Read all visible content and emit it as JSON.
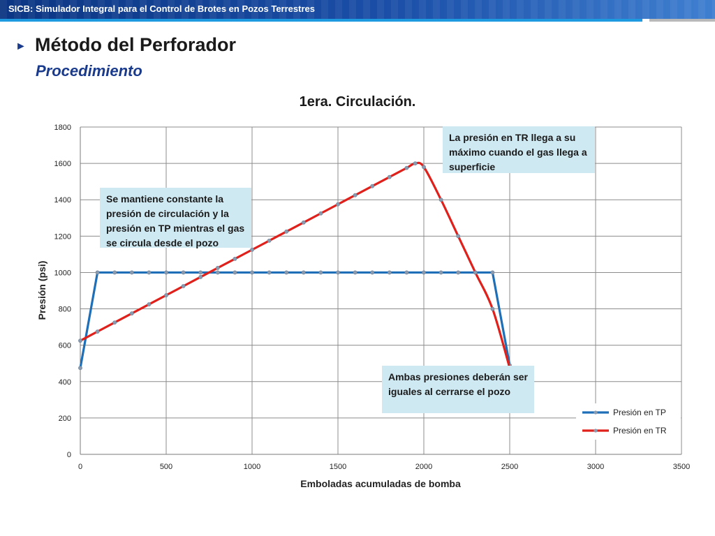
{
  "header": {
    "title": "SICB: Simulador Integral para el Control de Brotes en Pozos Terrestres"
  },
  "slide": {
    "bullet_glyph": "►",
    "title": "Método del Perforador",
    "subtitle": "Procedimiento"
  },
  "annotations": [
    "La presión en TR llega a su máximo cuando el gas llega a superficie",
    "Se mantiene constante la presión de circulación y la presión en TP mientras el gas se circula desde el pozo",
    "Ambas presiones deberán ser iguales al cerrarse el pozo"
  ],
  "chart_data": {
    "type": "line",
    "title": "1era. Circulación.",
    "xlabel": "Emboladas acumuladas de bomba",
    "ylabel": "Presión (psi)",
    "xlim": [
      0,
      3500
    ],
    "ylim": [
      0,
      1800
    ],
    "xticks": [
      0,
      500,
      1000,
      1500,
      2000,
      2500,
      3000,
      3500
    ],
    "yticks": [
      0,
      200,
      400,
      600,
      800,
      1000,
      1200,
      1400,
      1600,
      1800
    ],
    "grid": true,
    "legend_position": "bottom-right",
    "series": [
      {
        "name": "Presión en TP",
        "color": "#1f6fb8",
        "smooth": false,
        "x": [
          0,
          100,
          200,
          300,
          400,
          500,
          600,
          700,
          800,
          900,
          1000,
          1100,
          1200,
          1300,
          1400,
          1500,
          1600,
          1700,
          1800,
          1900,
          2000,
          2100,
          2200,
          2300,
          2400,
          2500
        ],
        "y": [
          475,
          1000,
          1000,
          1000,
          1000,
          1000,
          1000,
          1000,
          1000,
          1000,
          1000,
          1000,
          1000,
          1000,
          1000,
          1000,
          1000,
          1000,
          1000,
          1000,
          1000,
          1000,
          1000,
          1000,
          1000,
          490
        ]
      },
      {
        "name": "Presión en TR",
        "color": "#e0201b",
        "smooth": true,
        "x": [
          0,
          100,
          200,
          300,
          400,
          500,
          600,
          700,
          800,
          900,
          1000,
          1100,
          1200,
          1300,
          1400,
          1500,
          1600,
          1700,
          1800,
          1900,
          1950,
          2000,
          2100,
          2200,
          2300,
          2400,
          2500
        ],
        "y": [
          625,
          675,
          725,
          775,
          825,
          875,
          925,
          975,
          1025,
          1075,
          1125,
          1175,
          1225,
          1275,
          1325,
          1375,
          1425,
          1475,
          1525,
          1575,
          1600,
          1580,
          1400,
          1200,
          1000,
          800,
          475
        ]
      }
    ]
  }
}
